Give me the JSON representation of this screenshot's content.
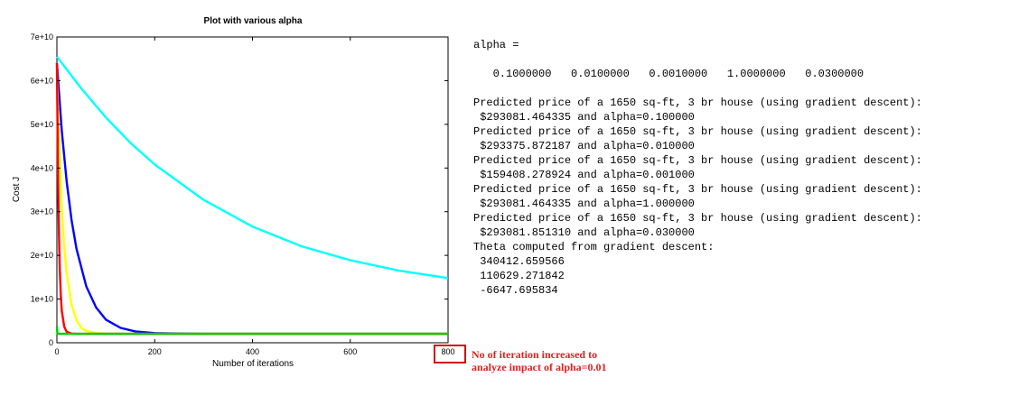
{
  "chart_data": {
    "type": "line",
    "title": "Plot with various alpha",
    "xlabel": "Number of iterations",
    "ylabel": "Cost J",
    "xlim": [
      0,
      800
    ],
    "ylim": [
      0,
      70000000000
    ],
    "x_ticks": [
      "0",
      "200",
      "400",
      "600",
      "800"
    ],
    "y_ticks": [
      "0",
      "1e+10",
      "2e+10",
      "3e+10",
      "4e+10",
      "5e+10",
      "6e+10",
      "7e+10"
    ],
    "grid": false,
    "series": [
      {
        "color": "#00ffff",
        "x": [
          0,
          50,
          100,
          150,
          200,
          300,
          400,
          500,
          600,
          700,
          800
        ],
        "y": [
          65500000000,
          58200000000,
          51600000000,
          45800000000,
          40800000000,
          32700000000,
          26600000000,
          22100000000,
          18900000000,
          16500000000,
          14800000000
        ]
      },
      {
        "color": "#0000ff",
        "x": [
          0,
          10,
          20,
          30,
          40,
          60,
          80,
          100,
          130,
          160,
          200,
          250,
          300,
          400,
          800
        ],
        "y": [
          64000000000,
          48500000000,
          36900000000,
          28100000000,
          21500000000,
          12900000000,
          8100000000,
          5300000000,
          3400000000,
          2600000000,
          2200000000,
          2100000000,
          2050000000,
          2040000000,
          2040000000
        ]
      },
      {
        "color": "#ffff00",
        "x": [
          0,
          5,
          10,
          15,
          20,
          30,
          40,
          50,
          60,
          80,
          100,
          150,
          800
        ],
        "y": [
          62000000000,
          43500000000,
          30800000000,
          22000000000,
          15900000000,
          8700000000,
          5100000000,
          3400000000,
          2700000000,
          2200000000,
          2080000000,
          2040000000,
          2040000000
        ]
      },
      {
        "color": "#ff0000",
        "x": [
          0,
          2,
          4,
          6,
          8,
          10,
          15,
          20,
          30,
          40,
          800
        ],
        "y": [
          64000000000,
          40500000000,
          25800000000,
          16800000000,
          10900000000,
          7300000000,
          3700000000,
          2500000000,
          2100000000,
          2050000000,
          2040000000
        ]
      },
      {
        "color": "#00cc00",
        "x": [
          0,
          1,
          2,
          3,
          5,
          10,
          800
        ],
        "y": [
          3800000000,
          2100000000,
          2040000000,
          2040000000,
          2040000000,
          2040000000,
          2040000000
        ]
      }
    ]
  },
  "console": {
    "lines": [
      "alpha =",
      "",
      "   0.1000000   0.0100000   0.0010000   1.0000000   0.0300000",
      "",
      "Predicted price of a 1650 sq-ft, 3 br house (using gradient descent):",
      " $293081.464335 and alpha=0.100000",
      "Predicted price of a 1650 sq-ft, 3 br house (using gradient descent):",
      " $293375.872187 and alpha=0.010000",
      "Predicted price of a 1650 sq-ft, 3 br house (using gradient descent):",
      " $159408.278924 and alpha=0.001000",
      "Predicted price of a 1650 sq-ft, 3 br house (using gradient descent):",
      " $293081.464335 and alpha=1.000000",
      "Predicted price of a 1650 sq-ft, 3 br house (using gradient descent):",
      " $293081.851310 and alpha=0.030000",
      "Theta computed from gradient descent:",
      " 340412.659566",
      " 110629.271842",
      " -6647.695834"
    ]
  },
  "annotation": {
    "line1": "No of iteration increased to",
    "line2": "analyze impact of alpha=0.01",
    "color": "#e02020"
  }
}
